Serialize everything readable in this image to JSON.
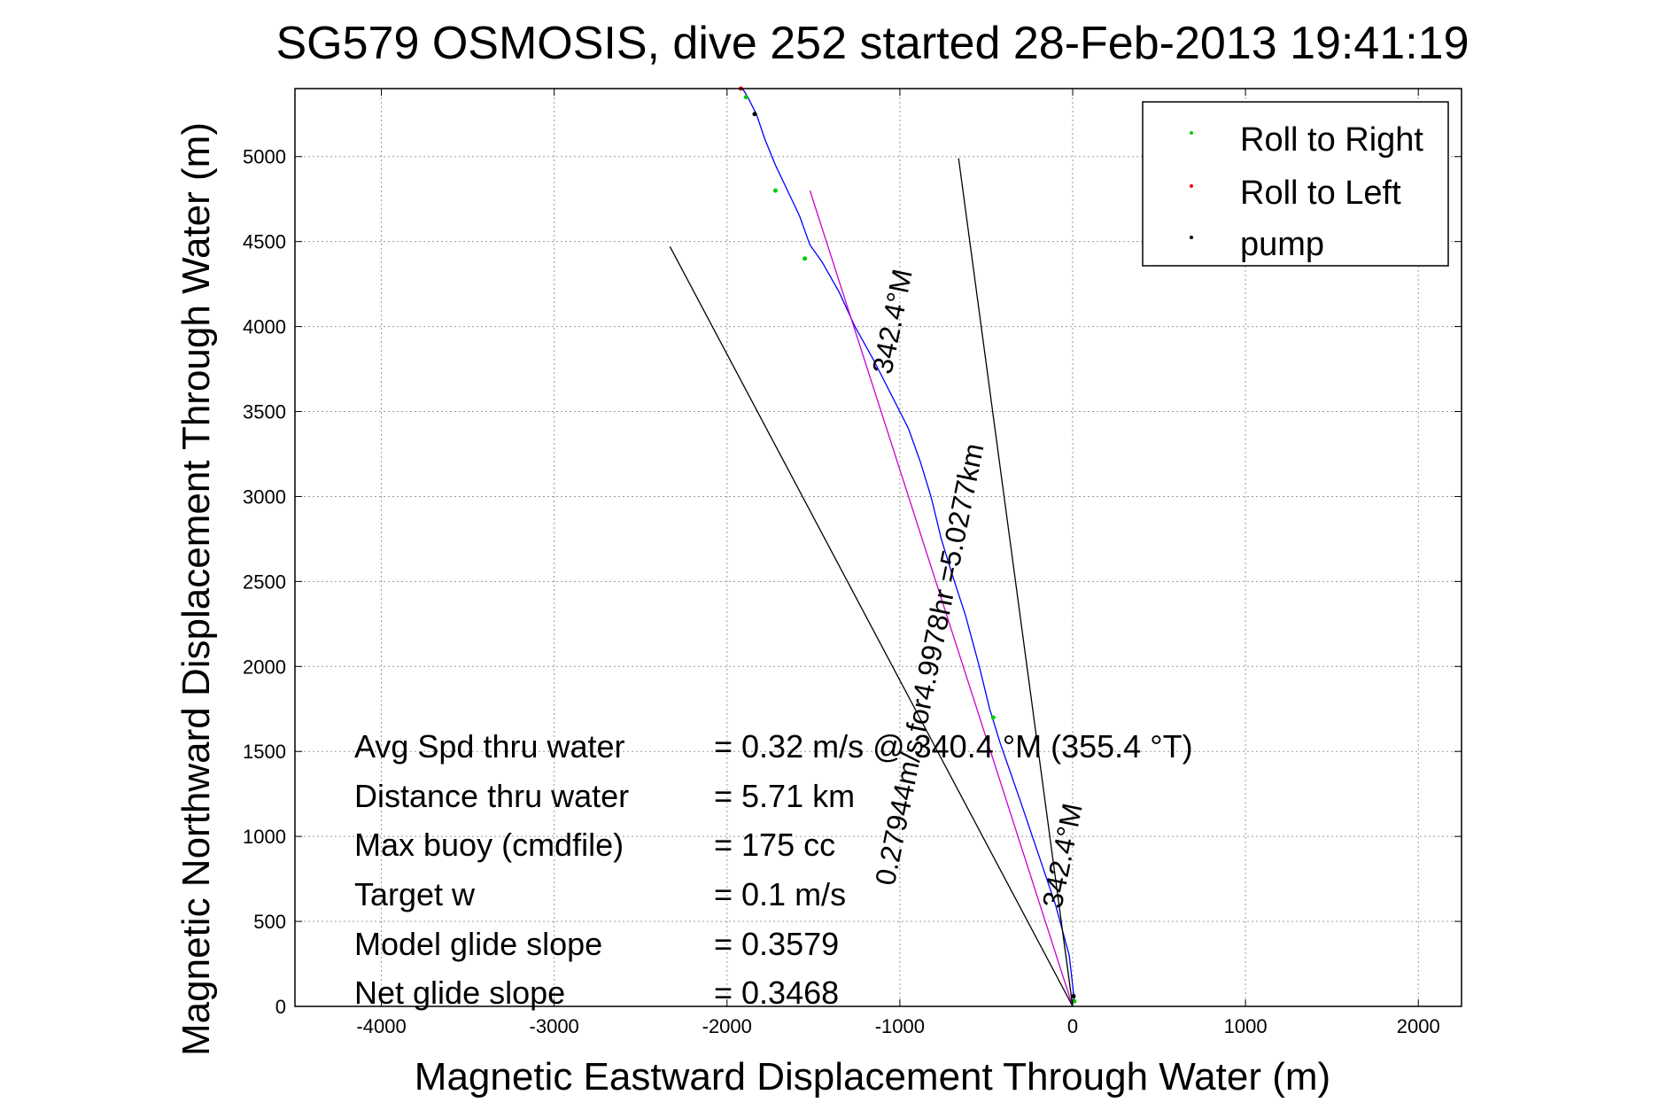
{
  "chart_data": {
    "type": "line",
    "title": "SG579 OSMOSIS, dive 252 started 28-Feb-2013 19:41:19",
    "xlabel": "Magnetic Eastward Displacement Through Water (m)",
    "ylabel": "Magnetic Northward Displacement Through Water (m)",
    "xlim": [
      -4500,
      2250
    ],
    "ylim": [
      0,
      5400
    ],
    "xticks": [
      -4000,
      -3000,
      -2000,
      -1000,
      0,
      1000,
      2000
    ],
    "yticks": [
      0,
      500,
      1000,
      1500,
      2000,
      2500,
      3000,
      3500,
      4000,
      4500,
      5000
    ],
    "grid": true,
    "legend_position": "top-right",
    "legend": [
      {
        "label": "Roll to Right",
        "color": "#00cc00"
      },
      {
        "label": "Roll to Left",
        "color": "#ff0000"
      },
      {
        "label": "pump",
        "color": "#000000"
      }
    ],
    "series": [
      {
        "style": "track",
        "color": "#0000ff",
        "x": [
          10,
          -20,
          -100,
          -200,
          -300,
          -420,
          -480,
          -540,
          -620,
          -700,
          -760,
          -820,
          -880,
          -950,
          -1050,
          -1150,
          -1260,
          -1350,
          -1450,
          -1520,
          -1580,
          -1650,
          -1720,
          -1780,
          -1830,
          -1880,
          -1910
        ],
        "y": [
          30,
          300,
          600,
          900,
          1200,
          1550,
          1750,
          2000,
          2300,
          2550,
          2750,
          3000,
          3200,
          3400,
          3600,
          3800,
          4000,
          4200,
          4380,
          4480,
          4650,
          4800,
          4950,
          5100,
          5250,
          5350,
          5400
        ]
      },
      {
        "style": "heading",
        "color": "#cc00cc",
        "x": [
          0,
          -1520
        ],
        "y": [
          0,
          4800
        ]
      },
      {
        "style": "bound",
        "color": "#000000",
        "x": [
          0,
          -2330
        ],
        "y": [
          0,
          4470
        ]
      },
      {
        "style": "bound",
        "color": "#000000",
        "x": [
          0,
          -660
        ],
        "y": [
          0,
          4990
        ]
      }
    ],
    "markers": [
      {
        "series": "Roll to Right",
        "color": "#00cc00",
        "x": [
          10,
          -460,
          -1550,
          -1720,
          -1890
        ],
        "y": [
          30,
          1700,
          4400,
          4800,
          5350
        ]
      },
      {
        "series": "Roll to Left",
        "color": "#ff0000",
        "x": [
          -1920
        ],
        "y": [
          5400
        ]
      },
      {
        "series": "pump",
        "color": "#000000",
        "x": [
          5,
          -1840
        ],
        "y": [
          60,
          5250
        ]
      }
    ],
    "annotations": [
      "0.27944m/s for4.9978hr =5.0277km",
      "342.4°M",
      "342.4°M"
    ]
  },
  "stats": [
    {
      "label": "Avg Spd thru water",
      "value": "=  0.32 m/s @ 340.4 °M (355.4 °T)"
    },
    {
      "label": "Distance thru water",
      "value": "=  5.71 km"
    },
    {
      "label": "Max buoy (cmdfile)",
      "value": "= 175 cc"
    },
    {
      "label": "Target w",
      "value": "= 0.1 m/s"
    },
    {
      "label": "Model glide slope",
      "value": "= 0.3579"
    },
    {
      "label": "Net glide slope",
      "value": "= 0.3468"
    }
  ]
}
